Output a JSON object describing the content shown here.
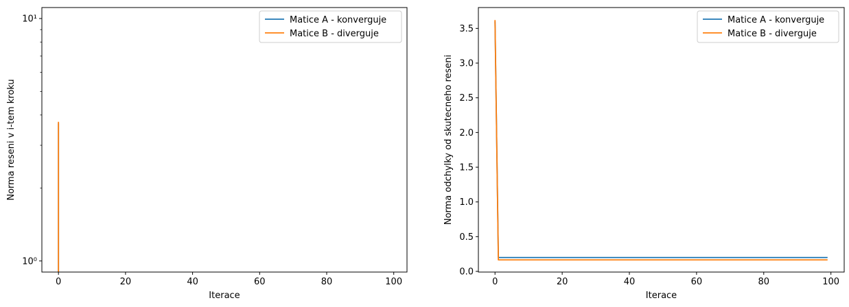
{
  "chart_data": [
    {
      "type": "line",
      "title": "",
      "xlabel": "Iterace",
      "ylabel": "Norma reseni v i-tem kroku",
      "yscale": "log",
      "xlim": [
        -4.95,
        103.95
      ],
      "ylim": [
        0.9,
        11.1
      ],
      "xticks": [
        0,
        20,
        40,
        60,
        80,
        100
      ],
      "xtick_labels": [
        "0",
        "20",
        "40",
        "60",
        "80",
        "100"
      ],
      "yticks": [
        1,
        10
      ],
      "ytick_labels": [
        "10⁰",
        "10¹"
      ],
      "grid": false,
      "legend": "top-right",
      "series": [
        {
          "name": "Matice A - konverguje",
          "color": "#1f77b4",
          "points": [
            [
              0,
              3.7
            ],
            [
              0,
              0.85
            ],
            [
              99,
              0.85
            ]
          ]
        },
        {
          "name": "Matice B - diverguje",
          "color": "#ff7f0e",
          "points": [
            [
              0,
              3.75
            ],
            [
              0,
              0.85
            ]
          ]
        }
      ]
    },
    {
      "type": "line",
      "title": "",
      "xlabel": "Iterace",
      "ylabel": "Norma odchylky od skutecneho reseni",
      "yscale": "linear",
      "xlim": [
        -4.95,
        103.95
      ],
      "ylim": [
        -0.01,
        3.8
      ],
      "xticks": [
        0,
        20,
        40,
        60,
        80,
        100
      ],
      "xtick_labels": [
        "0",
        "20",
        "40",
        "60",
        "80",
        "100"
      ],
      "yticks": [
        0.0,
        0.5,
        1.0,
        1.5,
        2.0,
        2.5,
        3.0,
        3.5
      ],
      "ytick_labels": [
        "0.0",
        "0.5",
        "1.0",
        "1.5",
        "2.0",
        "2.5",
        "3.0",
        "3.5"
      ],
      "grid": false,
      "legend": "top-right",
      "series": [
        {
          "name": "Matice A - konverguje",
          "color": "#1f77b4",
          "points": [
            [
              0,
              3.6
            ],
            [
              1,
              0.2
            ],
            [
              99,
              0.2
            ]
          ]
        },
        {
          "name": "Matice B - diverguje",
          "color": "#ff7f0e",
          "points": [
            [
              0,
              3.62
            ],
            [
              1,
              0.165
            ],
            [
              99,
              0.165
            ]
          ]
        }
      ]
    }
  ]
}
